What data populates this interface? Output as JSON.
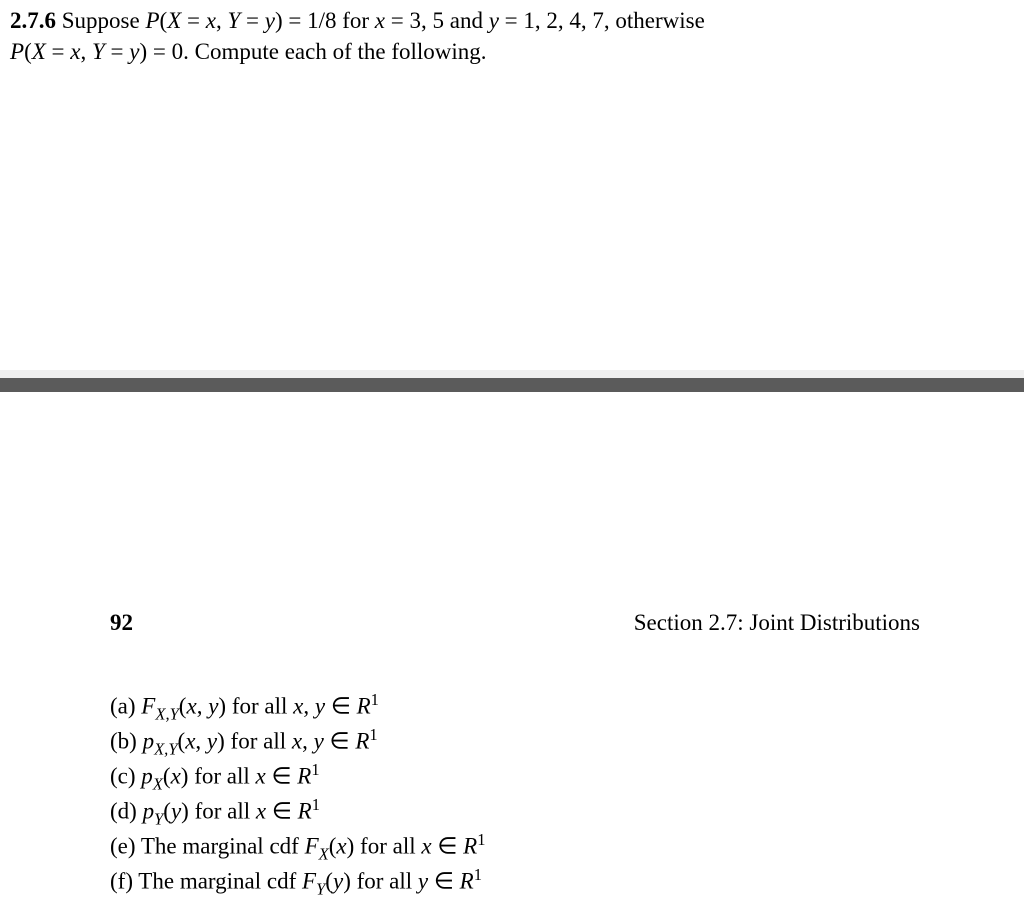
{
  "problem": {
    "number": "2.7.6",
    "line1_a": "Suppose ",
    "line1_b": "P",
    "line1_c": "(",
    "line1_d": "X",
    "line1_e": " = ",
    "line1_f": "x",
    "line1_g": ", ",
    "line1_h": "Y",
    "line1_i": " = ",
    "line1_j": "y",
    "line1_k": ") = 1/8 for ",
    "line1_l": "x",
    "line1_m": " = 3, 5 and ",
    "line1_n": "y",
    "line1_o": " = 1, 2, 4, 7, otherwise",
    "line2_a": "P",
    "line2_b": "(",
    "line2_c": "X",
    "line2_d": " = ",
    "line2_e": "x",
    "line2_f": ", ",
    "line2_g": "Y",
    "line2_h": " = ",
    "line2_i": "y",
    "line2_j": ") = 0. Compute each of the following."
  },
  "page": {
    "number": "92",
    "section": "Section 2.7: Joint Distributions"
  },
  "items": {
    "a_label": "(a) ",
    "a_fx": "F",
    "a_sub": "X,Y",
    "a_paren": "(",
    "a_x": "x",
    "a_comma": ", ",
    "a_y": "y",
    "a_mid": ") for all ",
    "a_x2": "x",
    "a_comma2": ", ",
    "a_y2": "y",
    "a_in": " ∈ ",
    "a_r": "R",
    "a_sup": "1",
    "b_label": "(b) ",
    "b_px": "p",
    "b_sub": "X,Y",
    "b_paren": "(",
    "b_x": "x",
    "b_comma": ", ",
    "b_y": "y",
    "b_mid": ") for all ",
    "b_x2": "x",
    "b_comma2": ", ",
    "b_y2": "y",
    "b_in": " ∈ ",
    "b_r": "R",
    "b_sup": "1",
    "c_label": "(c) ",
    "c_px": "p",
    "c_sub": "X",
    "c_paren": "(",
    "c_x": "x",
    "c_mid": ") for all ",
    "c_x2": "x",
    "c_in": " ∈ ",
    "c_r": "R",
    "c_sup": "1",
    "d_label": "(d) ",
    "d_py": "p",
    "d_sub": "Y",
    "d_paren": "(",
    "d_y": "y",
    "d_mid": ") for all ",
    "d_x2": "x",
    "d_in": " ∈ ",
    "d_r": "R",
    "d_sup": "1",
    "e_label": "(e) The marginal cdf ",
    "e_fx": "F",
    "e_sub": "X",
    "e_paren": "(",
    "e_x": "x",
    "e_mid": ") for all ",
    "e_x2": "x",
    "e_in": " ∈ ",
    "e_r": "R",
    "e_sup": "1",
    "f_label": "(f) The marginal cdf ",
    "f_fy": "F",
    "f_sub": "Y",
    "f_paren": "(",
    "f_y": "y",
    "f_mid": ") for all ",
    "f_y2": "y",
    "f_in": " ∈ ",
    "f_r": "R",
    "f_sup": "1"
  }
}
